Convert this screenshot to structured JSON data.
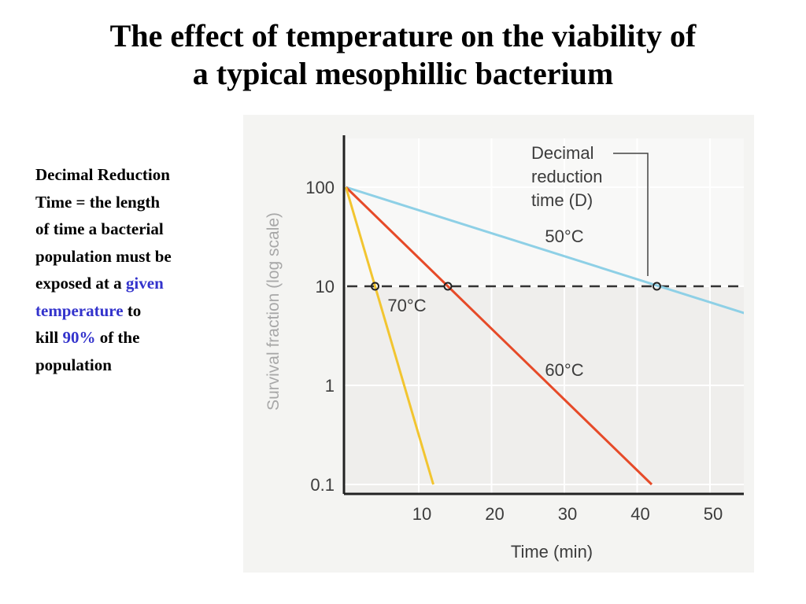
{
  "slide": {
    "title_lines": [
      "The effect of temperature on the viability of",
      "a typical mesophillic bacterium"
    ],
    "definition": {
      "line1": "Decimal Reduction",
      "line2": "Time = the length",
      "line3": "of time a bacterial",
      "line4": "population must be",
      "line5_pre": "exposed at a ",
      "line5_hl": "given",
      "line6_hl": "temperature",
      "line6_post": " to",
      "line7_pre": "kill ",
      "line7_hl": "90%",
      "line7_post": " of the",
      "line8": "population"
    },
    "highlight_color": "#3333cc"
  },
  "chart_data": {
    "type": "line",
    "title": "",
    "xlabel": "Time (min)",
    "ylabel": "Survival fraction (log scale)",
    "x_ticks": [
      10,
      20,
      30,
      40,
      50
    ],
    "y_ticks": [
      0.1,
      1,
      10,
      100
    ],
    "y_tick_labels": [
      "0.1",
      "1",
      "10",
      "100"
    ],
    "y_scale": "log",
    "xlim": [
      0,
      54
    ],
    "ylim": [
      0.1,
      300
    ],
    "grid": true,
    "series": [
      {
        "name": "50°C",
        "color": "#8ed0e6",
        "x": [
          0,
          56
        ],
        "y": [
          100,
          5
        ]
      },
      {
        "name": "60°C",
        "color": "#e64a28",
        "x": [
          0,
          42
        ],
        "y": [
          100,
          0.1
        ]
      },
      {
        "name": "70°C",
        "color": "#f2c530",
        "x": [
          0,
          12
        ],
        "y": [
          100,
          0.1
        ]
      }
    ],
    "reference_line": {
      "y": 10,
      "style": "dashed",
      "color": "#333333"
    },
    "markers": [
      {
        "x": 4,
        "y": 10
      },
      {
        "x": 14,
        "y": 10
      },
      {
        "x": 42.7,
        "y": 10
      }
    ],
    "annotation": {
      "lines": [
        "Decimal",
        "reduction",
        "time (D)"
      ]
    },
    "colors": {
      "plot_bg": "#efeeec",
      "upper_bg": "#f8f8f7",
      "panel_bg": "#f4f4f2",
      "axis": "#222222",
      "text": "#3c3c3c",
      "ylabel": "#a8a8a8"
    }
  }
}
